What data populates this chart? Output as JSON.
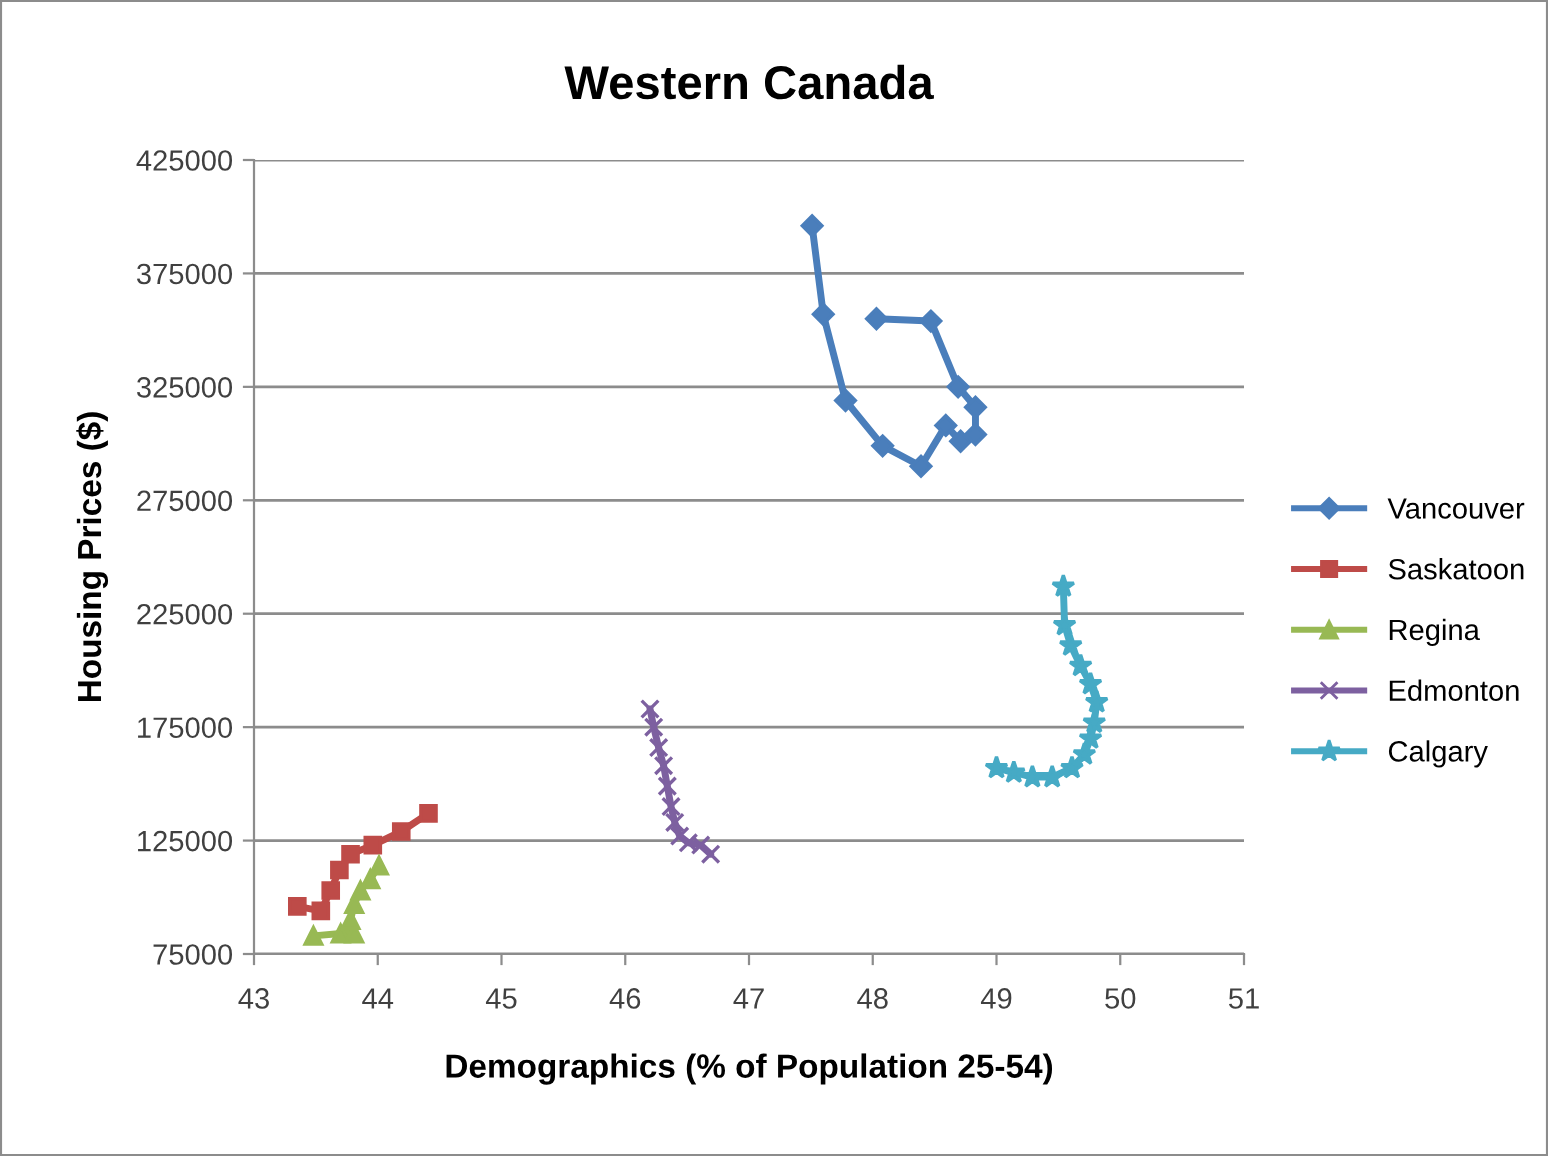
{
  "chart_data": {
    "type": "line",
    "title": "Western Canada",
    "xlabel": "Demographics (% of Population 25-54)",
    "ylabel": "Housing Prices ($)",
    "xlim": [
      43,
      51
    ],
    "xticks": [
      43,
      44,
      45,
      46,
      47,
      48,
      49,
      50,
      51
    ],
    "ylim": [
      75000,
      425000
    ],
    "yticks": [
      75000,
      125000,
      175000,
      225000,
      275000,
      325000,
      375000,
      425000
    ],
    "grid": "y",
    "legend": "right",
    "line_style": "solid",
    "series": [
      {
        "name": "Vancouver",
        "color": "#4a7ebb",
        "marker": "diamond",
        "x": [
          47.51,
          47.6,
          47.78,
          48.08,
          48.39,
          48.59,
          48.71,
          48.83,
          48.83,
          48.69,
          48.47,
          48.03
        ],
        "values": [
          396000,
          357000,
          319000,
          299000,
          290000,
          308000,
          301000,
          304000,
          316000,
          325000,
          354000,
          355000
        ]
      },
      {
        "name": "Saskatoon",
        "color": "#be4b48",
        "marker": "square",
        "x": [
          43.35,
          43.54,
          43.62,
          43.69,
          43.78,
          43.96,
          44.19,
          44.41
        ],
        "values": [
          96000,
          94000,
          103000,
          112000,
          119000,
          123000,
          129000,
          137000
        ]
      },
      {
        "name": "Regina",
        "color": "#98b954",
        "marker": "triangle",
        "x": [
          43.48,
          43.7,
          43.81,
          43.78,
          43.81,
          43.86,
          43.94,
          44.01
        ],
        "values": [
          83000,
          84000,
          84000,
          90000,
          97000,
          103000,
          108000,
          114000
        ]
      },
      {
        "name": "Edmonton",
        "color": "#7d60a0",
        "marker": "cross",
        "x": [
          46.2,
          46.23,
          46.27,
          46.31,
          46.34,
          46.37,
          46.4,
          46.44,
          46.51,
          46.61,
          46.69
        ],
        "values": [
          183000,
          175000,
          166000,
          158000,
          149000,
          140000,
          133000,
          127000,
          124000,
          123000,
          119000
        ]
      },
      {
        "name": "Calgary",
        "color": "#46aac5",
        "marker": "star",
        "x": [
          49.54,
          49.55,
          49.6,
          49.68,
          49.76,
          49.81,
          49.79,
          49.76,
          49.71,
          49.61,
          49.45,
          49.29,
          49.14,
          49.0
        ],
        "values": [
          237000,
          220000,
          211000,
          202000,
          194000,
          186000,
          177000,
          170000,
          163000,
          157000,
          153000,
          153000,
          155000,
          157000
        ]
      }
    ]
  }
}
